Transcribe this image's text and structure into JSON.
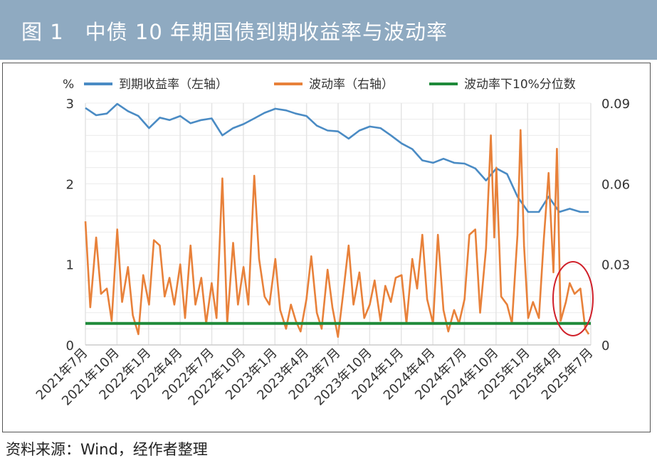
{
  "header": {
    "title": "图 1　中债 10 年期国债到期收益率与波动率"
  },
  "source": "资料来源：Wind，经作者整理",
  "colors": {
    "header_bg": "#8faac1",
    "yield": "#4a8bc4",
    "volatility": "#e8813a",
    "quantile": "#1f8a3a",
    "annotation": "#d0202a"
  },
  "chart_data": {
    "type": "line",
    "title": "",
    "left_axis": {
      "unit": "%",
      "ylim": [
        0,
        3
      ],
      "ticks": [
        "0",
        "1",
        "2",
        "3"
      ]
    },
    "right_axis": {
      "ylim": [
        0,
        0.09
      ],
      "ticks": [
        "0",
        "0.03",
        "0.06",
        "0.09"
      ]
    },
    "x_ticks": [
      "2021年7月",
      "2021年10月",
      "2022年1月",
      "2022年4月",
      "2022年7月",
      "2022年10月",
      "2023年1月",
      "2023年4月",
      "2023年7月",
      "2023年10月",
      "2024年1月",
      "2024年4月",
      "2024年7月",
      "2024年10月",
      "2025年1月",
      "2025年4月",
      "2025年7月"
    ],
    "x_range": [
      "2021-07-01",
      "2025-07-01"
    ],
    "grid": true,
    "legend": "top",
    "annotation": "red ellipse around recent volatility (2025年4月–7月)",
    "series": [
      {
        "name": "到期收益率（左轴）",
        "axis": "left",
        "points": [
          [
            "2021-07-01",
            2.94
          ],
          [
            "2021-08-01",
            2.85
          ],
          [
            "2021-09-01",
            2.87
          ],
          [
            "2021-10-01",
            2.99
          ],
          [
            "2021-11-01",
            2.9
          ],
          [
            "2021-12-01",
            2.84
          ],
          [
            "2022-01-01",
            2.69
          ],
          [
            "2022-02-01",
            2.82
          ],
          [
            "2022-03-01",
            2.79
          ],
          [
            "2022-04-01",
            2.84
          ],
          [
            "2022-05-01",
            2.75
          ],
          [
            "2022-06-01",
            2.79
          ],
          [
            "2022-07-01",
            2.81
          ],
          [
            "2022-08-01",
            2.6
          ],
          [
            "2022-09-01",
            2.69
          ],
          [
            "2022-10-01",
            2.74
          ],
          [
            "2022-11-01",
            2.81
          ],
          [
            "2022-12-01",
            2.88
          ],
          [
            "2023-01-01",
            2.93
          ],
          [
            "2023-02-01",
            2.91
          ],
          [
            "2023-03-01",
            2.87
          ],
          [
            "2023-04-01",
            2.84
          ],
          [
            "2023-05-01",
            2.72
          ],
          [
            "2023-06-01",
            2.66
          ],
          [
            "2023-07-01",
            2.65
          ],
          [
            "2023-08-01",
            2.56
          ],
          [
            "2023-09-01",
            2.66
          ],
          [
            "2023-10-01",
            2.71
          ],
          [
            "2023-11-01",
            2.69
          ],
          [
            "2023-12-01",
            2.6
          ],
          [
            "2024-01-01",
            2.5
          ],
          [
            "2024-02-01",
            2.43
          ],
          [
            "2024-03-01",
            2.29
          ],
          [
            "2024-04-01",
            2.26
          ],
          [
            "2024-05-01",
            2.31
          ],
          [
            "2024-06-01",
            2.26
          ],
          [
            "2024-07-01",
            2.25
          ],
          [
            "2024-08-01",
            2.19
          ],
          [
            "2024-09-01",
            2.04
          ],
          [
            "2024-10-01",
            2.19
          ],
          [
            "2024-11-01",
            2.12
          ],
          [
            "2024-12-01",
            1.84
          ],
          [
            "2025-01-01",
            1.65
          ],
          [
            "2025-02-01",
            1.65
          ],
          [
            "2025-03-01",
            1.84
          ],
          [
            "2025-04-01",
            1.65
          ],
          [
            "2025-05-01",
            1.69
          ],
          [
            "2025-06-01",
            1.65
          ],
          [
            "2025-06-25",
            1.65
          ]
        ]
      },
      {
        "name": "波动率（右轴）",
        "axis": "right",
        "points": [
          [
            "2021-07-01",
            0.046
          ],
          [
            "2021-07-15",
            0.014
          ],
          [
            "2021-08-01",
            0.04
          ],
          [
            "2021-08-15",
            0.019
          ],
          [
            "2021-09-01",
            0.021
          ],
          [
            "2021-09-15",
            0.009
          ],
          [
            "2021-10-01",
            0.043
          ],
          [
            "2021-10-15",
            0.016
          ],
          [
            "2021-11-01",
            0.029
          ],
          [
            "2021-11-15",
            0.011
          ],
          [
            "2021-12-01",
            0.004
          ],
          [
            "2021-12-15",
            0.026
          ],
          [
            "2022-01-01",
            0.015
          ],
          [
            "2022-01-15",
            0.039
          ],
          [
            "2022-02-01",
            0.037
          ],
          [
            "2022-02-15",
            0.018
          ],
          [
            "2022-03-01",
            0.025
          ],
          [
            "2022-03-15",
            0.015
          ],
          [
            "2022-04-01",
            0.03
          ],
          [
            "2022-04-15",
            0.01
          ],
          [
            "2022-05-01",
            0.037
          ],
          [
            "2022-05-15",
            0.015
          ],
          [
            "2022-06-01",
            0.025
          ],
          [
            "2022-06-15",
            0.008
          ],
          [
            "2022-07-01",
            0.023
          ],
          [
            "2022-07-15",
            0.01
          ],
          [
            "2022-08-01",
            0.062
          ],
          [
            "2022-08-15",
            0.008
          ],
          [
            "2022-09-01",
            0.038
          ],
          [
            "2022-09-15",
            0.015
          ],
          [
            "2022-10-01",
            0.029
          ],
          [
            "2022-10-15",
            0.015
          ],
          [
            "2022-11-01",
            0.063
          ],
          [
            "2022-11-15",
            0.032
          ],
          [
            "2022-12-01",
            0.018
          ],
          [
            "2022-12-15",
            0.015
          ],
          [
            "2023-01-01",
            0.032
          ],
          [
            "2023-01-15",
            0.013
          ],
          [
            "2023-02-01",
            0.006
          ],
          [
            "2023-02-15",
            0.015
          ],
          [
            "2023-03-01",
            0.009
          ],
          [
            "2023-03-15",
            0.005
          ],
          [
            "2023-04-01",
            0.017
          ],
          [
            "2023-04-15",
            0.033
          ],
          [
            "2023-05-01",
            0.012
          ],
          [
            "2023-05-15",
            0.006
          ],
          [
            "2023-06-01",
            0.028
          ],
          [
            "2023-06-15",
            0.014
          ],
          [
            "2023-07-01",
            0.003
          ],
          [
            "2023-07-15",
            0.018
          ],
          [
            "2023-08-01",
            0.037
          ],
          [
            "2023-08-15",
            0.015
          ],
          [
            "2023-09-01",
            0.027
          ],
          [
            "2023-09-15",
            0.01
          ],
          [
            "2023-10-01",
            0.015
          ],
          [
            "2023-10-15",
            0.024
          ],
          [
            "2023-11-01",
            0.009
          ],
          [
            "2023-11-15",
            0.022
          ],
          [
            "2023-12-01",
            0.016
          ],
          [
            "2023-12-15",
            0.025
          ],
          [
            "2024-01-01",
            0.026
          ],
          [
            "2024-01-15",
            0.008
          ],
          [
            "2024-02-01",
            0.032
          ],
          [
            "2024-02-15",
            0.021
          ],
          [
            "2024-03-01",
            0.041
          ],
          [
            "2024-03-15",
            0.017
          ],
          [
            "2024-04-01",
            0.008
          ],
          [
            "2024-04-15",
            0.041
          ],
          [
            "2024-05-01",
            0.013
          ],
          [
            "2024-05-15",
            0.005
          ],
          [
            "2024-06-01",
            0.013
          ],
          [
            "2024-06-15",
            0.008
          ],
          [
            "2024-07-01",
            0.017
          ],
          [
            "2024-07-15",
            0.041
          ],
          [
            "2024-08-01",
            0.043
          ],
          [
            "2024-08-15",
            0.012
          ],
          [
            "2024-09-01",
            0.036
          ],
          [
            "2024-09-15",
            0.078
          ],
          [
            "2024-09-25",
            0.04
          ],
          [
            "2024-10-01",
            0.066
          ],
          [
            "2024-10-15",
            0.018
          ],
          [
            "2024-11-01",
            0.015
          ],
          [
            "2024-11-15",
            0.008
          ],
          [
            "2024-12-01",
            0.041
          ],
          [
            "2024-12-10",
            0.08
          ],
          [
            "2024-12-20",
            0.037
          ],
          [
            "2025-01-01",
            0.01
          ],
          [
            "2025-01-15",
            0.016
          ],
          [
            "2025-02-01",
            0.01
          ],
          [
            "2025-02-15",
            0.039
          ],
          [
            "2025-03-01",
            0.064
          ],
          [
            "2025-03-15",
            0.027
          ],
          [
            "2025-03-25",
            0.073
          ],
          [
            "2025-04-05",
            0.009
          ],
          [
            "2025-04-20",
            0.016
          ],
          [
            "2025-05-01",
            0.023
          ],
          [
            "2025-05-15",
            0.019
          ],
          [
            "2025-06-01",
            0.021
          ],
          [
            "2025-06-15",
            0.006
          ],
          [
            "2025-06-25",
            0.004
          ]
        ]
      },
      {
        "name": "波动率下10%分位数",
        "axis": "right",
        "points": [
          [
            "2021-07-01",
            0.008
          ],
          [
            "2025-07-01",
            0.008
          ]
        ]
      }
    ]
  }
}
